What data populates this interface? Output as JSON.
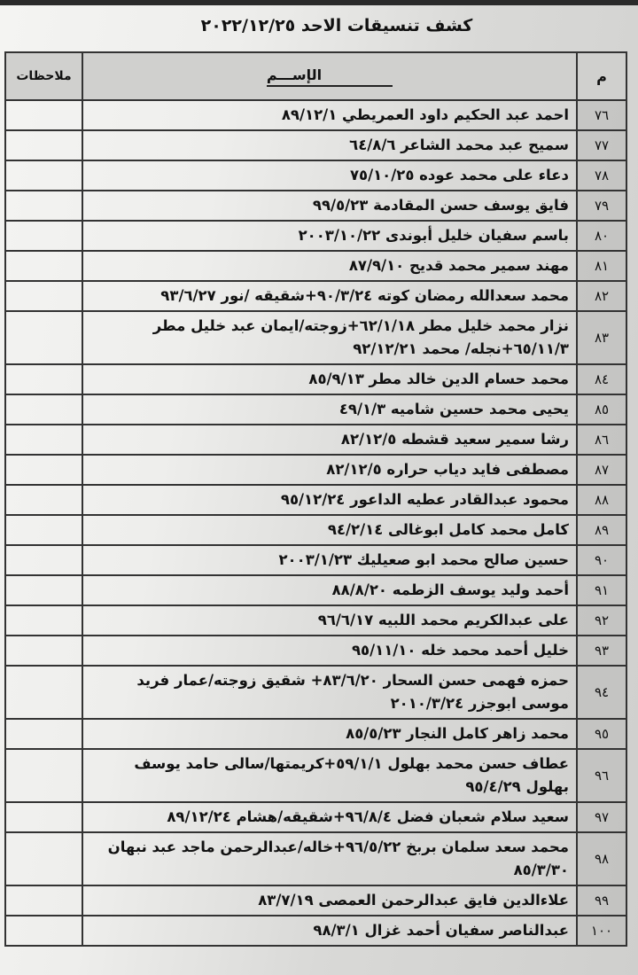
{
  "title": "كشف تنسيقات الاحد ٢٠٢٢/١٢/٢٥",
  "headers": {
    "num": "م",
    "name": "الإســـم",
    "notes": "ملاحظات"
  },
  "rows": [
    {
      "num": "٧٦",
      "name": "احمد عبد الحكيم داود العمريطي ٨٩/١٢/١"
    },
    {
      "num": "٧٧",
      "name": "سميح عبد محمد الشاعر ٦٤/٨/٦"
    },
    {
      "num": "٧٨",
      "name": "دعاء على محمد عوده ٧٥/١٠/٢٥"
    },
    {
      "num": "٧٩",
      "name": "فايق يوسف حسن المقادمة ٩٩/٥/٢٣"
    },
    {
      "num": "٨٠",
      "name": "باسم سفيان خليل أبوندى ٢٠٠٣/١٠/٢٢"
    },
    {
      "num": "٨١",
      "name": "مهند سمير محمد قديح ٨٧/٩/١٠"
    },
    {
      "num": "٨٢",
      "name": "محمد سعدالله رمضان كوته ٩٠/٣/٢٤+شقيقه /نور ٩٣/٦/٢٧"
    },
    {
      "num": "٨٣",
      "name": "نزار محمد خليل مطر ٦٢/١/١٨+زوجته/ايمان عبد خليل مطر ٦٥/١١/٣+نجله/ محمد ٩٢/١٢/٢١"
    },
    {
      "num": "٨٤",
      "name": "محمد حسام الدين خالد مطر ٨٥/٩/١٣"
    },
    {
      "num": "٨٥",
      "name": "يحيى محمد حسين شاميه ٤٩/١/٣"
    },
    {
      "num": "٨٦",
      "name": "رشا سمير سعيد قشطه ٨٢/١٢/٥"
    },
    {
      "num": "٨٧",
      "name": "مصطفى فايد دياب حراره ٨٢/١٢/٥"
    },
    {
      "num": "٨٨",
      "name": "محمود عبدالقادر عطيه الداعور ٩٥/١٢/٢٤"
    },
    {
      "num": "٨٩",
      "name": "كامل محمد كامل ابوغالى ٩٤/٢/١٤"
    },
    {
      "num": "٩٠",
      "name": "حسين صالح محمد ابو صعيليك ٢٠٠٣/١/٢٣"
    },
    {
      "num": "٩١",
      "name": "أحمد وليد يوسف الزطمه ٨٨/٨/٢٠"
    },
    {
      "num": "٩٢",
      "name": "على عبدالكريم محمد اللبيه ٩٦/٦/١٧"
    },
    {
      "num": "٩٣",
      "name": "خليل أحمد محمد خله ٩٥/١١/١٠"
    },
    {
      "num": "٩٤",
      "name": "حمزه فهمى حسن السحار ٨٣/٦/٢٠+ شقيق زوجته/عمار فريد موسى ابوجزر ٢٠١٠/٣/٢٤"
    },
    {
      "num": "٩٥",
      "name": "محمد زاهر كامل النجار ٨٥/٥/٢٣"
    },
    {
      "num": "٩٦",
      "name": "عطاف حسن محمد بهلول ٥٩/١/١+كريمتها/سالى حامد يوسف بهلول ٩٥/٤/٢٩"
    },
    {
      "num": "٩٧",
      "name": "سعيد سلام شعبان فضل ٩٦/٨/٤+شقيقه/هشام ٨٩/١٢/٢٤"
    },
    {
      "num": "٩٨",
      "name": "محمد سعد سلمان بربخ ٩٦/٥/٢٢+خاله/عبدالرحمن ماجد عبد نبهان ٨٥/٣/٣٠"
    },
    {
      "num": "٩٩",
      "name": "علاءالدين فايق عبدالرحمن العمصى ٨٣/٧/١٩"
    },
    {
      "num": "١٠٠",
      "name": "عبدالناصر سفيان أحمد غزال ٩٨/٣/١"
    }
  ]
}
